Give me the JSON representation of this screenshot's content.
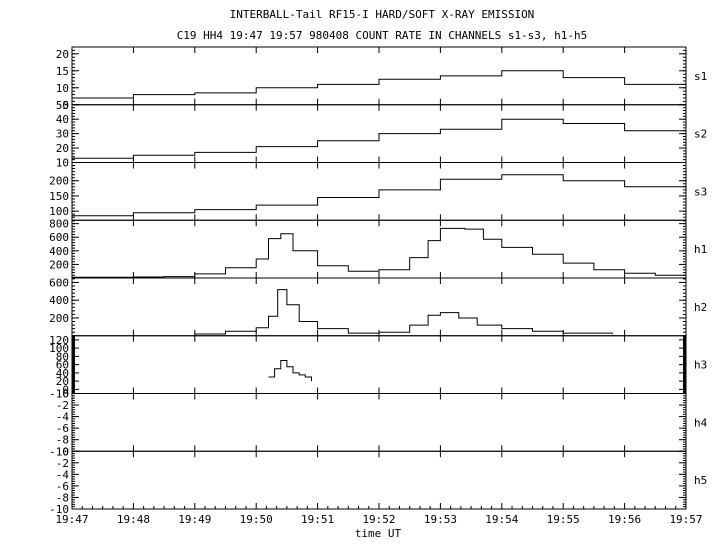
{
  "chart_data": {
    "type": "line",
    "title": "INTERBALL-Tail RF15-I HARD/SOFT X-RAY EMISSION",
    "subtitle": "C19 HH4 19:47 19:57 980408  COUNT RATE IN CHANNELS s1-s3, h1-h5",
    "xlabel": "time UT",
    "x_ticks": [
      "19:47",
      "19:48",
      "19:49",
      "19:50",
      "19:51",
      "19:52",
      "19:53",
      "19:54",
      "19:55",
      "19:56",
      "19:57"
    ],
    "xlim": [
      0,
      10
    ],
    "panels": [
      {
        "name": "s1",
        "ylim": [
          5,
          22
        ],
        "yticks": [
          5,
          10,
          15,
          20
        ],
        "x": [
          0,
          1,
          2,
          3,
          4,
          5,
          6,
          7,
          8,
          9,
          10
        ],
        "y": [
          7,
          8,
          8.5,
          10,
          11,
          12.5,
          13.5,
          15,
          13,
          11,
          10
        ]
      },
      {
        "name": "s2",
        "ylim": [
          10,
          50
        ],
        "yticks": [
          10,
          20,
          30,
          40,
          50
        ],
        "x": [
          0,
          1,
          2,
          3,
          4,
          5,
          6,
          7,
          8,
          9,
          10
        ],
        "y": [
          13,
          15,
          17,
          21,
          25,
          30,
          33,
          40,
          37,
          32,
          28
        ]
      },
      {
        "name": "s3",
        "ylim": [
          70,
          260
        ],
        "yticks": [
          100,
          150,
          200
        ],
        "x": [
          0,
          1,
          2,
          3,
          4,
          5,
          6,
          7,
          8,
          9,
          10
        ],
        "y": [
          85,
          95,
          105,
          120,
          145,
          170,
          205,
          220,
          200,
          180,
          160
        ]
      },
      {
        "name": "h1",
        "ylim": [
          0,
          850
        ],
        "yticks": [
          200,
          400,
          600,
          800
        ],
        "x": [
          0,
          1,
          1.5,
          2,
          2.5,
          3,
          3.2,
          3.4,
          3.6,
          4,
          4.5,
          5,
          5.5,
          5.8,
          6,
          6.4,
          6.7,
          7,
          7.5,
          8,
          8.5,
          9,
          9.5,
          10
        ],
        "y": [
          10,
          15,
          20,
          60,
          150,
          280,
          580,
          650,
          400,
          180,
          100,
          120,
          300,
          550,
          730,
          720,
          570,
          450,
          350,
          220,
          120,
          70,
          40,
          25
        ]
      },
      {
        "name": "h2",
        "ylim": [
          0,
          650
        ],
        "yticks": [
          200,
          400,
          600
        ],
        "x": [
          2,
          2.5,
          3,
          3.2,
          3.35,
          3.5,
          3.7,
          4,
          4.5,
          5,
          5.5,
          5.8,
          6,
          6.3,
          6.6,
          7,
          7.5,
          8,
          8.8
        ],
        "y": [
          20,
          50,
          90,
          220,
          520,
          350,
          160,
          80,
          30,
          40,
          120,
          230,
          260,
          200,
          120,
          80,
          50,
          30,
          20
        ]
      },
      {
        "name": "h3",
        "ylim": [
          -10,
          130
        ],
        "yticks": [
          -10,
          0,
          20,
          40,
          60,
          80,
          100,
          120
        ],
        "x": [
          3.2,
          3.3,
          3.4,
          3.5,
          3.6,
          3.7,
          3.8,
          3.9
        ],
        "y": [
          30,
          50,
          70,
          55,
          40,
          35,
          30,
          20
        ]
      },
      {
        "name": "h4",
        "ylim": [
          -10,
          0
        ],
        "yticks": [
          -10,
          -8,
          -6,
          -4,
          -2,
          0
        ],
        "x": [],
        "y": []
      },
      {
        "name": "h5",
        "ylim": [
          -10,
          0
        ],
        "yticks": [
          -10,
          -8,
          -6,
          -4,
          -2,
          0
        ],
        "x": [],
        "y": []
      }
    ]
  }
}
